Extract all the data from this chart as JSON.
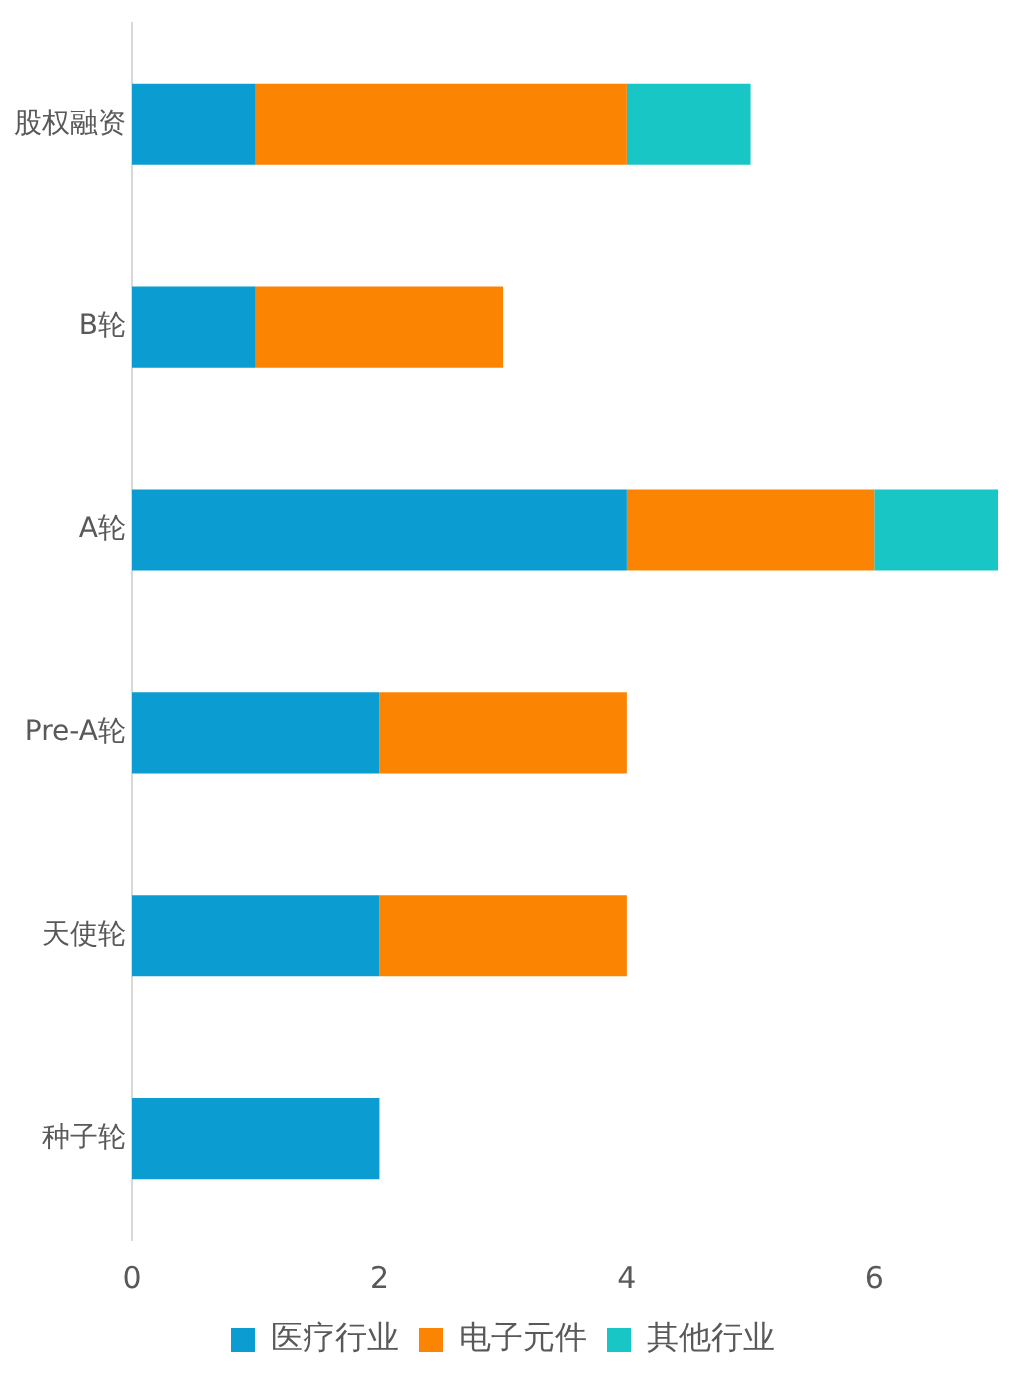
{
  "chart_data": {
    "type": "bar",
    "orientation": "horizontal",
    "stacked": true,
    "categories": [
      "股权融资",
      "B轮",
      "A轮",
      "Pre-A轮",
      "天使轮",
      "种子轮"
    ],
    "series": [
      {
        "name": "医疗行业",
        "color": "#0b9cd1",
        "values": [
          1,
          1,
          4,
          2,
          2,
          2
        ]
      },
      {
        "name": "电子元件",
        "color": "#fc8403",
        "values": [
          3,
          2,
          2,
          2,
          2,
          0
        ]
      },
      {
        "name": "其他行业",
        "color": "#19c6c6",
        "values": [
          1,
          0,
          1,
          0,
          0,
          0
        ]
      }
    ],
    "xlim": [
      0,
      7
    ],
    "xticks": [
      0,
      2,
      4,
      6
    ],
    "grid": false,
    "legend": "bottom"
  }
}
